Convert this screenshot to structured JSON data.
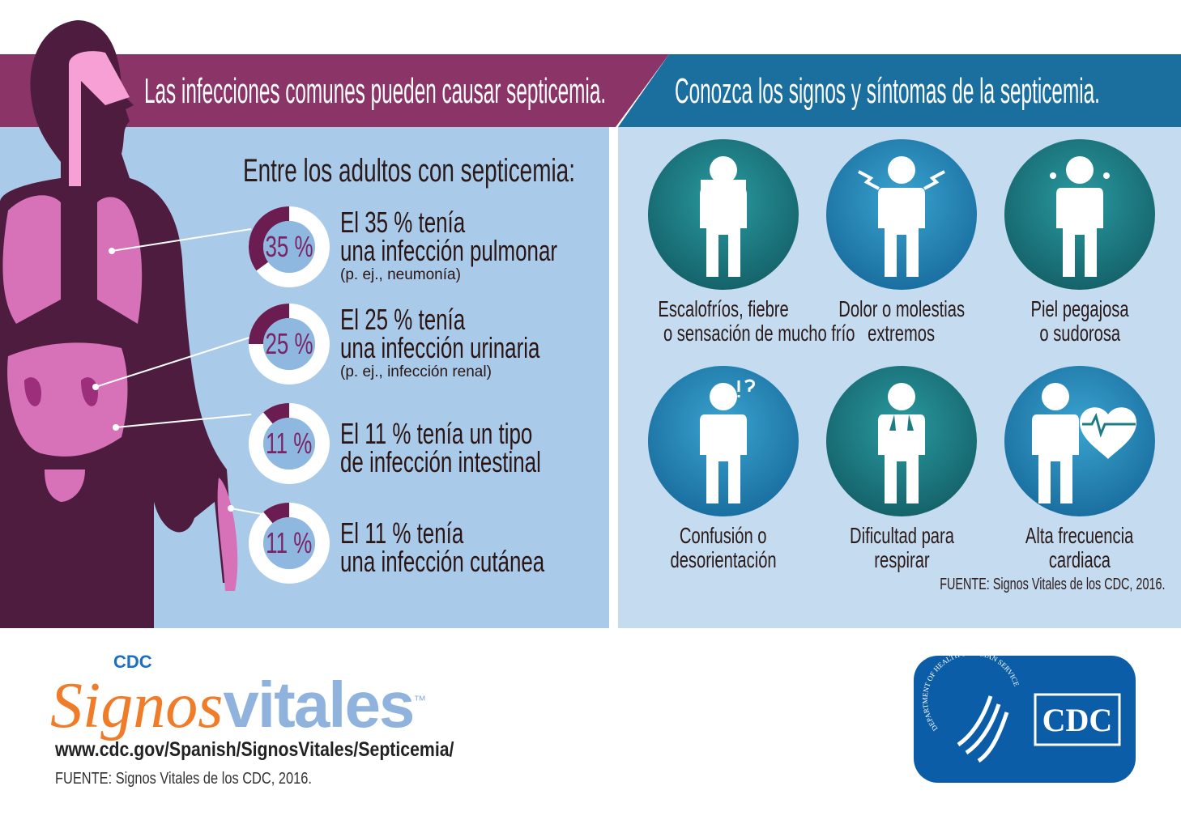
{
  "colors": {
    "purple_header": "#8a3468",
    "blue_header": "#1b6f9f",
    "left_panel": "#a9cbe9",
    "right_panel": "#c5dcf0",
    "body": "#4e1c3f",
    "organs": "#d771b8",
    "donut_arc": "#6b1d52",
    "teal": "#1c7b84",
    "orange": "#f07c2a",
    "light_blue_text": "#8fb3dc",
    "cdc_blue": "#0b5da8"
  },
  "left": {
    "header": "Las infecciones comunes pueden causar septicemia.",
    "subheading": "Entre los adultos con septicemia:",
    "stats": [
      {
        "percent": 35,
        "donut_label": "35 %",
        "line1": "El 35 % tenía",
        "line2": "una infección pulmonar",
        "note": "(p. ej., neumonía)"
      },
      {
        "percent": 25,
        "donut_label": "25 %",
        "line1": "El 25 % tenía",
        "line2": "una infección urinaria",
        "note": "(p. ej., infección renal)"
      },
      {
        "percent": 11,
        "donut_label": "11 %",
        "line1": "El 11 % tenía un tipo",
        "line2": "de infección intestinal",
        "note": ""
      },
      {
        "percent": 11,
        "donut_label": "11 %",
        "line1": "El 11 % tenía",
        "line2": "una infección cutánea",
        "note": ""
      }
    ]
  },
  "right": {
    "header": "Conozca los signos y síntomas de la septicemia.",
    "symptoms": [
      {
        "icon": "shivering-person-icon",
        "line1": "Escalofríos, fiebre",
        "line2": "o sensación de mucho frío"
      },
      {
        "icon": "pain-person-icon",
        "line1": "Dolor o molestias",
        "line2": "extremos"
      },
      {
        "icon": "sweating-person-icon",
        "line1": "Piel pegajosa",
        "line2": "o sudorosa"
      },
      {
        "icon": "confused-person-icon",
        "line1": "Confusión o",
        "line2": "desorientación"
      },
      {
        "icon": "breathing-person-icon",
        "line1": "Dificultad para",
        "line2": "respirar"
      },
      {
        "icon": "heart-rate-person-icon",
        "line1": "Alta frecuencia",
        "line2": "cardiaca"
      }
    ],
    "source": "FUENTE: Signos Vitales de los CDC, 2016."
  },
  "footer": {
    "logo_cdc": "CDC",
    "logo_signos": "Signos",
    "logo_vitales": "vitales",
    "logo_tm": "™",
    "url": "www.cdc.gov/Spanish/SignosVitales/Septicemia/",
    "source": "FUENTE: Signos Vitales de los CDC, 2016.",
    "hhs_seal": "DEPARTMENT OF HEALTH & HUMAN SERVICES · USA",
    "cdc_badge": "CDC"
  }
}
